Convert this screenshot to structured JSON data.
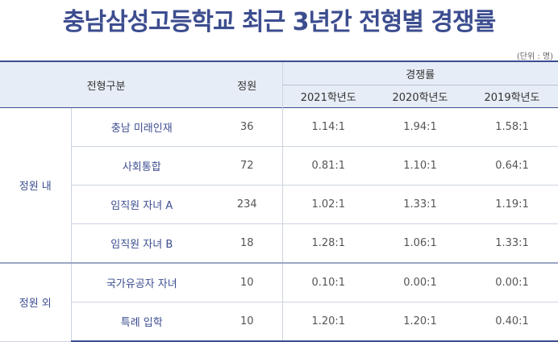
{
  "title": "충남삼성고등학교 최근 3년간 전형별 경쟁률",
  "unit_note": "(단위 : 명)",
  "headers": {
    "type": "전형구분",
    "quota": "정원",
    "ratio_group": "경쟁률",
    "years": [
      "2021학년도",
      "2020학년도",
      "2019학년도"
    ]
  },
  "groups": [
    {
      "label": "정원 내",
      "rows": [
        {
          "name": "충남 미래인재",
          "quota": "36",
          "ratios": [
            "1.14:1",
            "1.94:1",
            "1.58:1"
          ]
        },
        {
          "name": "사회통합",
          "quota": "72",
          "ratios": [
            "0.81:1",
            "1.10:1",
            "0.64:1"
          ]
        },
        {
          "name": "임직원 자녀 A",
          "quota": "234",
          "ratios": [
            "1.02:1",
            "1.33:1",
            "1.19:1"
          ]
        },
        {
          "name": "임직원 자녀 B",
          "quota": "18",
          "ratios": [
            "1.28:1",
            "1.06:1",
            "1.33:1"
          ]
        }
      ]
    },
    {
      "label": "정원 외",
      "rows": [
        {
          "name": "국가유공자 자녀",
          "quota": "10",
          "ratios": [
            "0.10:1",
            "0.00:1",
            "0.00:1"
          ]
        },
        {
          "name": "특례 입학",
          "quota": "10",
          "ratios": [
            "1.20:1",
            "1.20:1",
            "0.40:1"
          ]
        }
      ]
    }
  ]
}
